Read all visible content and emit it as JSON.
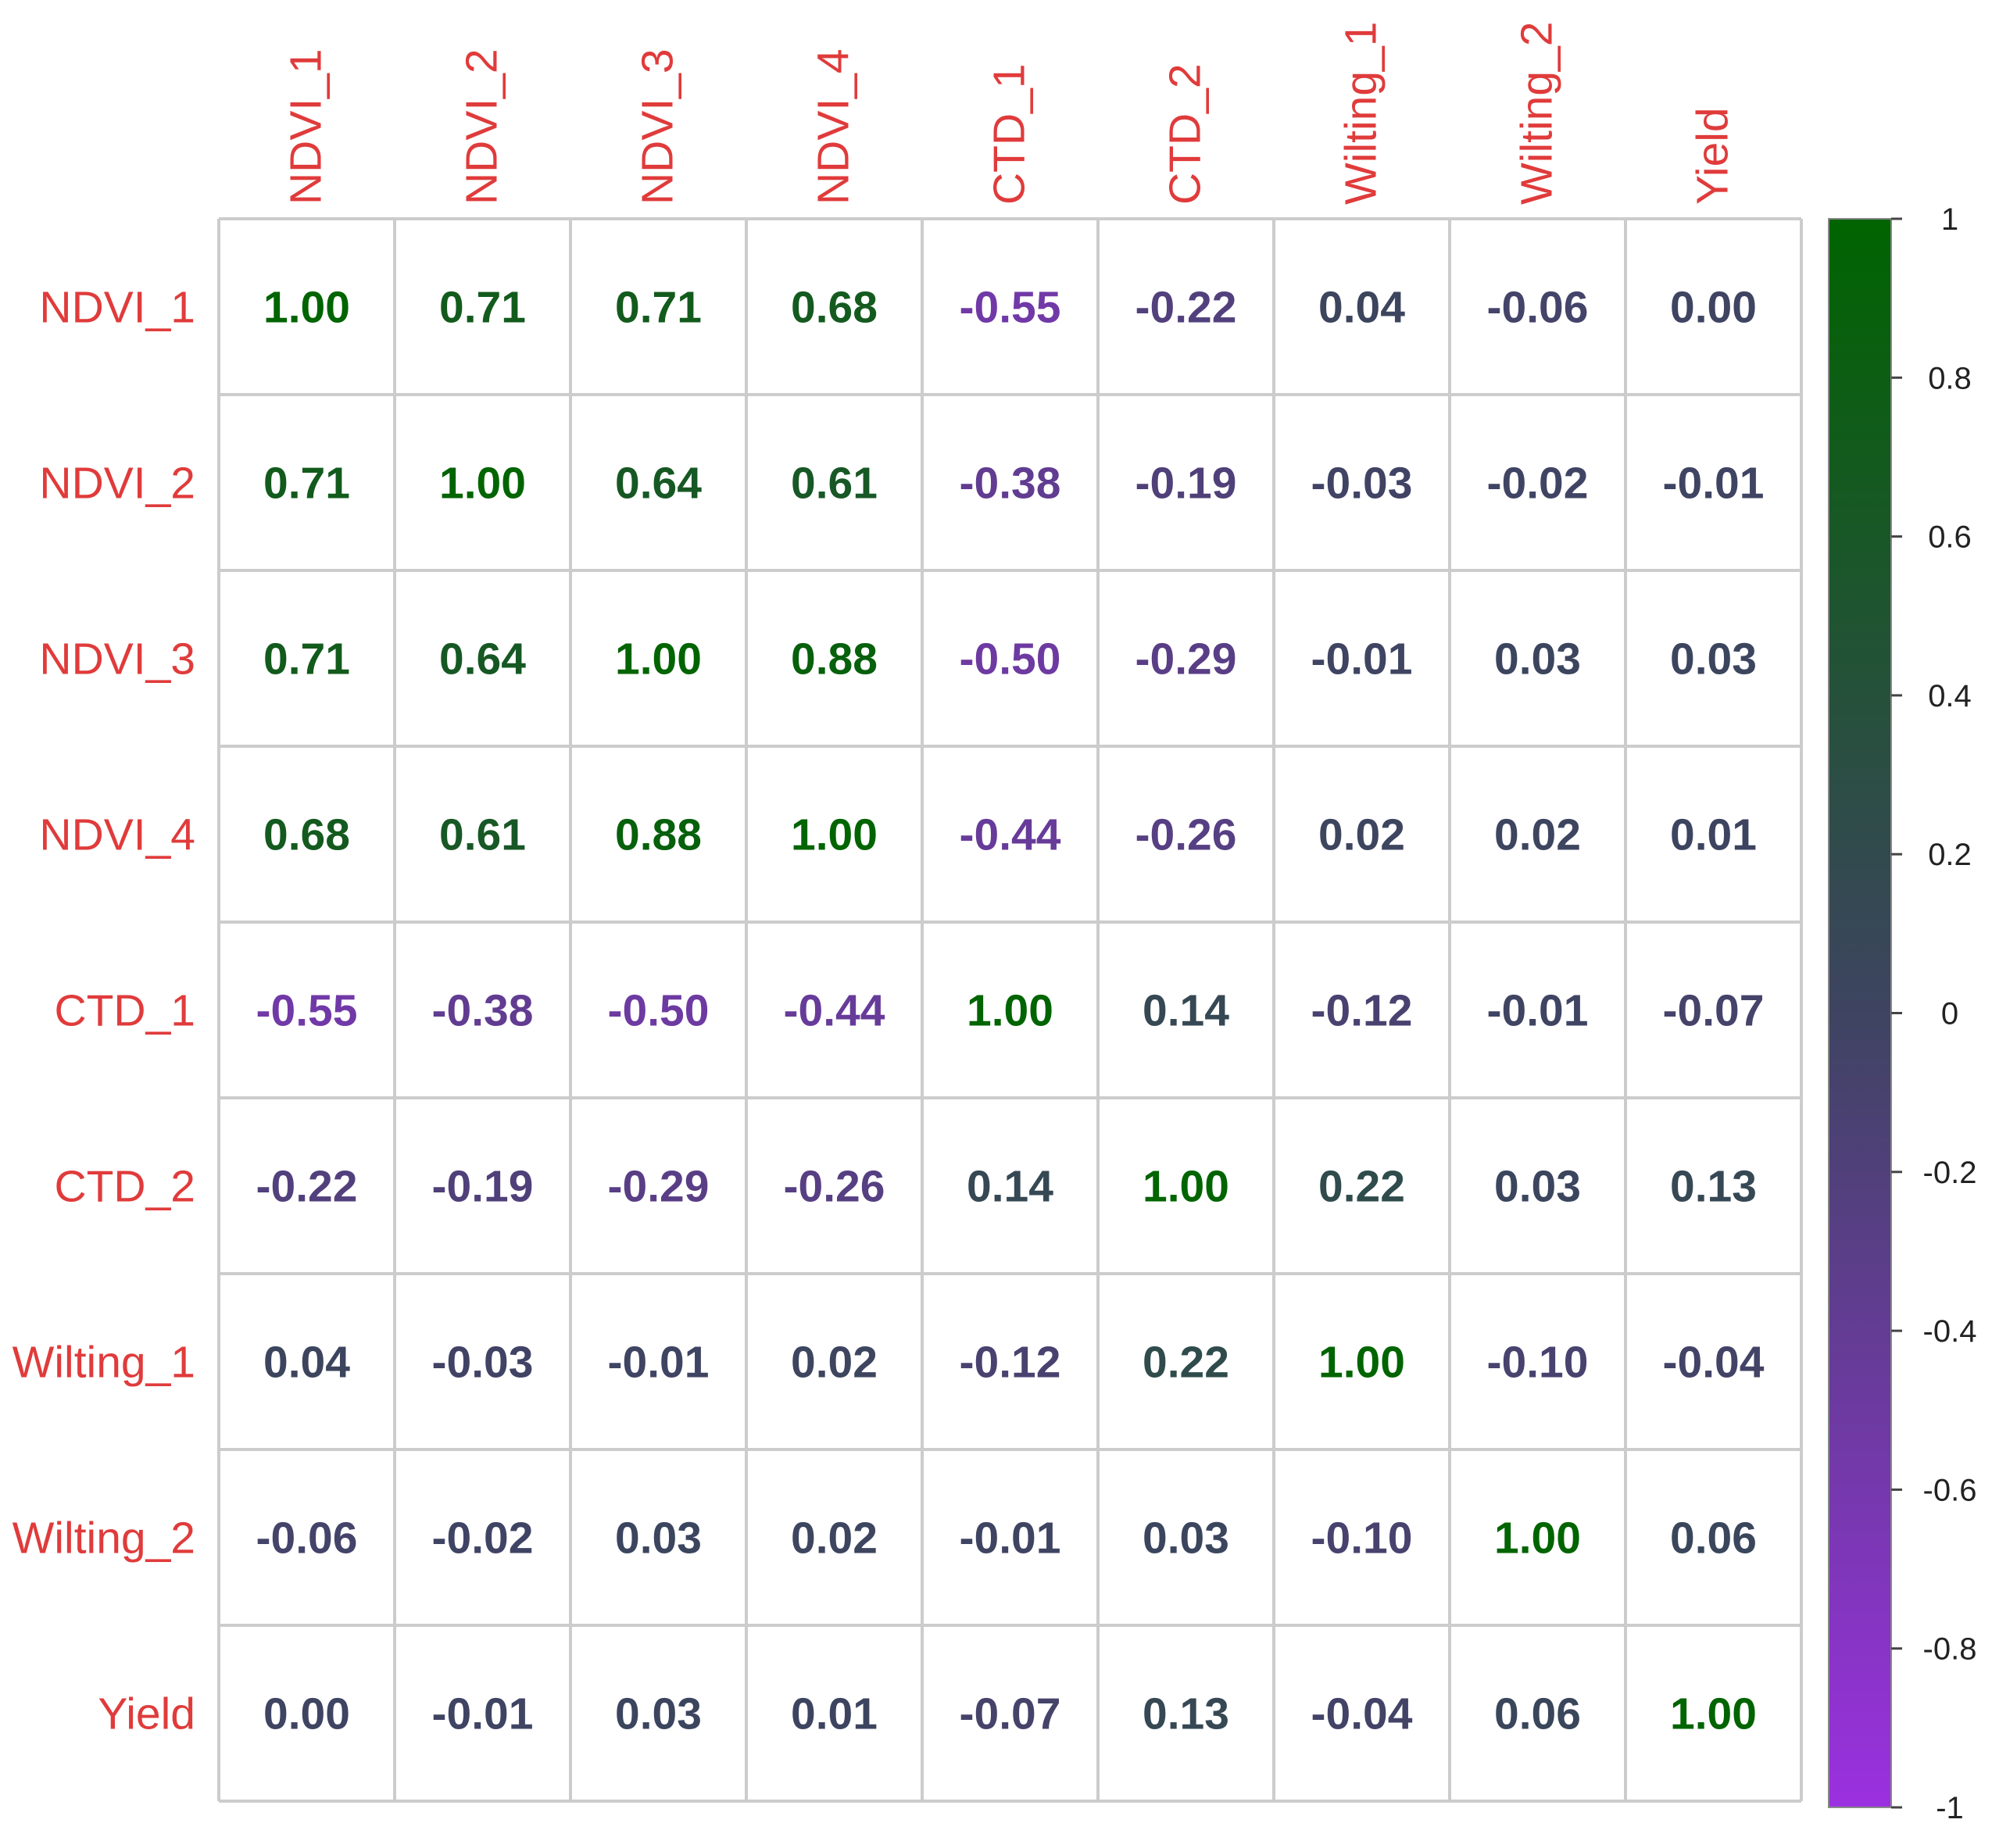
{
  "chart_data": {
    "type": "heatmap",
    "variables": [
      "NDVI_1",
      "NDVI_2",
      "NDVI_3",
      "NDVI_4",
      "CTD_1",
      "CTD_2",
      "Wilting_1",
      "Wilting_2",
      "Yield"
    ],
    "matrix": [
      [
        "1.00",
        "0.71",
        "0.71",
        "0.68",
        "-0.55",
        "-0.22",
        "0.04",
        "-0.06",
        "0.00"
      ],
      [
        "0.71",
        "1.00",
        "0.64",
        "0.61",
        "-0.38",
        "-0.19",
        "-0.03",
        "-0.02",
        "-0.01"
      ],
      [
        "0.71",
        "0.64",
        "1.00",
        "0.88",
        "-0.50",
        "-0.29",
        "-0.01",
        "0.03",
        "0.03"
      ],
      [
        "0.68",
        "0.61",
        "0.88",
        "1.00",
        "-0.44",
        "-0.26",
        "0.02",
        "0.02",
        "0.01"
      ],
      [
        "-0.55",
        "-0.38",
        "-0.50",
        "-0.44",
        "1.00",
        "0.14",
        "-0.12",
        "-0.01",
        "-0.07"
      ],
      [
        "-0.22",
        "-0.19",
        "-0.29",
        "-0.26",
        "0.14",
        "1.00",
        "0.22",
        "0.03",
        "0.13"
      ],
      [
        "0.04",
        "-0.03",
        "-0.01",
        "0.02",
        "-0.12",
        "0.22",
        "1.00",
        "-0.10",
        "-0.04"
      ],
      [
        "-0.06",
        "-0.02",
        "0.03",
        "0.02",
        "-0.01",
        "0.03",
        "-0.10",
        "1.00",
        "0.06"
      ],
      [
        "0.00",
        "-0.01",
        "0.03",
        "0.01",
        "-0.07",
        "0.13",
        "-0.04",
        "0.06",
        "1.00"
      ]
    ],
    "colorbar": {
      "range": [
        -1,
        1
      ],
      "ticks": [
        "1",
        "0.8",
        "0.6",
        "0.4",
        "0.2",
        "0",
        "-0.2",
        "-0.4",
        "-0.6",
        "-0.8",
        "-1"
      ],
      "colors": [
        "#9b30e0",
        "#3e4461",
        "#006400"
      ]
    },
    "label_color": "#e03b3b",
    "grid": true,
    "legend": "right"
  }
}
